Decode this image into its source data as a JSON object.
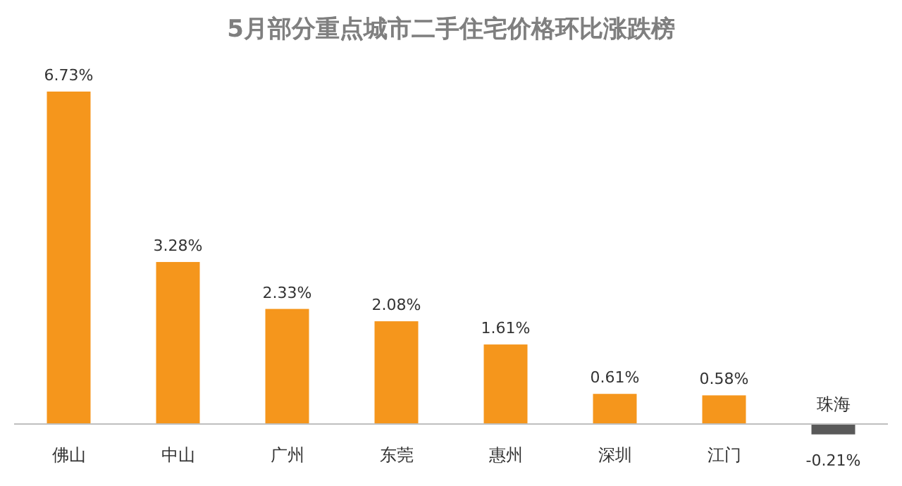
{
  "chart_data": {
    "type": "bar",
    "title": "5月部分重点城市二手住宅价格环比涨跌榜",
    "categories": [
      "佛山",
      "中山",
      "广州",
      "东莞",
      "惠州",
      "深圳",
      "江门",
      "珠海"
    ],
    "values": [
      6.73,
      3.28,
      2.33,
      2.08,
      1.61,
      0.61,
      0.58,
      -0.21
    ],
    "value_labels": [
      "6.73%",
      "3.28%",
      "2.33%",
      "2.08%",
      "1.61%",
      "0.61%",
      "0.58%",
      "-0.21%"
    ],
    "colors": [
      "#f5961c",
      "#f5961c",
      "#f5961c",
      "#f5961c",
      "#f5961c",
      "#f5961c",
      "#f5961c",
      "#595959"
    ],
    "data_labels": false
  }
}
